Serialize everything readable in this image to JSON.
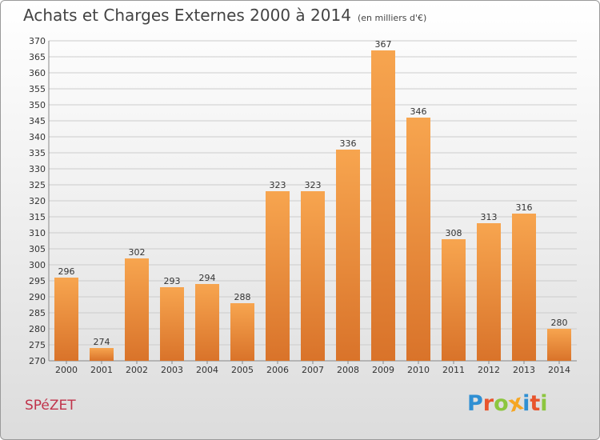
{
  "header": {
    "title": "Achats et Charges Externes 2000 à 2014",
    "subtitle": "(en milliers d'€)"
  },
  "footer": {
    "town": "SPéZET",
    "logo": [
      "P",
      "r",
      "o",
      "x",
      "i",
      "t",
      "i"
    ],
    "logo_colors": [
      "#2f8fd3",
      "#e8542c",
      "#8cc63f",
      "#f5a623",
      "#2f8fd3",
      "#e8542c",
      "#8cc63f"
    ]
  },
  "colors": {
    "bar_top": "#f7a54f",
    "bar_bottom": "#d9732a",
    "grid": "#cccccc"
  },
  "chart_data": {
    "type": "bar",
    "title": "Achats et Charges Externes 2000 à 2014",
    "ylabel": "en milliers d'€",
    "xlabel": "",
    "categories": [
      "2000",
      "2001",
      "2002",
      "2003",
      "2004",
      "2005",
      "2006",
      "2007",
      "2008",
      "2009",
      "2010",
      "2011",
      "2012",
      "2013",
      "2014"
    ],
    "values": [
      296,
      274,
      302,
      293,
      294,
      288,
      323,
      323,
      336,
      367,
      346,
      308,
      313,
      316,
      280
    ],
    "ylim": [
      270,
      370
    ],
    "ytick_step": 5,
    "grid": true
  }
}
